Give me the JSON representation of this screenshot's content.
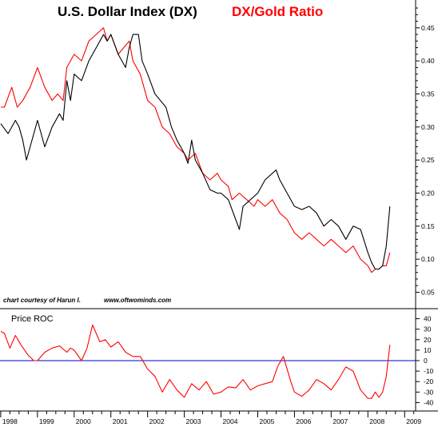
{
  "chart_data": [
    {
      "type": "line",
      "title": "U.S. Dollar Index (DX)",
      "title2": "DX/Gold Ratio",
      "credit_left": "chart courtesy of Harun I.",
      "credit_right": "www.oftwominds.com",
      "ylim": [
        0.03,
        0.48
      ],
      "y_ticks": [
        "0.05",
        "0.10",
        "0.15",
        "0.20",
        "0.25",
        "0.30",
        "0.35",
        "0.40",
        "0.45"
      ],
      "x_ticks": [
        "1998",
        "1999",
        "2000",
        "2001",
        "2002",
        "2003",
        "2004",
        "2005",
        "2006",
        "2007",
        "2008",
        "2009"
      ],
      "series": [
        {
          "name": "U.S. Dollar Index (DX)",
          "color": "#000000",
          "x": [
            1998.0,
            1998.2,
            1998.4,
            1998.5,
            1998.6,
            1998.7,
            1998.8,
            1998.9,
            1999.0,
            1999.2,
            1999.4,
            1999.6,
            1999.7,
            1999.8,
            1999.9,
            2000.0,
            2000.2,
            2000.4,
            2000.6,
            2000.8,
            2000.9,
            2001.0,
            2001.2,
            2001.4,
            2001.5,
            2001.6,
            2001.75,
            2001.85,
            2002.0,
            2002.2,
            2002.35,
            2002.5,
            2002.65,
            2002.8,
            2003.0,
            2003.1,
            2003.2,
            2003.3,
            2003.5,
            2003.7,
            2003.9,
            2004.0,
            2004.2,
            2004.4,
            2004.5,
            2004.6,
            2004.8,
            2005.0,
            2005.2,
            2005.4,
            2005.5,
            2005.6,
            2005.8,
            2006.0,
            2006.2,
            2006.4,
            2006.6,
            2006.8,
            2007.0,
            2007.2,
            2007.4,
            2007.6,
            2007.8,
            2008.0,
            2008.1,
            2008.2,
            2008.3,
            2008.4,
            2008.5,
            2008.6
          ],
          "values": [
            0.305,
            0.29,
            0.31,
            0.3,
            0.28,
            0.25,
            0.27,
            0.29,
            0.31,
            0.27,
            0.3,
            0.32,
            0.31,
            0.37,
            0.34,
            0.38,
            0.37,
            0.4,
            0.42,
            0.44,
            0.43,
            0.44,
            0.41,
            0.39,
            0.42,
            0.44,
            0.44,
            0.4,
            0.38,
            0.35,
            0.34,
            0.33,
            0.3,
            0.28,
            0.26,
            0.245,
            0.28,
            0.25,
            0.23,
            0.205,
            0.2,
            0.2,
            0.19,
            0.16,
            0.145,
            0.18,
            0.19,
            0.2,
            0.22,
            0.23,
            0.235,
            0.22,
            0.2,
            0.18,
            0.175,
            0.18,
            0.17,
            0.15,
            0.16,
            0.15,
            0.13,
            0.15,
            0.145,
            0.11,
            0.095,
            0.085,
            0.085,
            0.09,
            0.12,
            0.18
          ]
        },
        {
          "name": "DX/Gold Ratio",
          "color": "#ff0000",
          "x": [
            1998.0,
            1998.1,
            1998.3,
            1998.45,
            1998.6,
            1998.8,
            1999.0,
            1999.2,
            1999.4,
            1999.55,
            1999.7,
            1999.8,
            2000.0,
            2000.2,
            2000.4,
            2000.6,
            2000.8,
            2000.9,
            2001.0,
            2001.2,
            2001.35,
            2001.5,
            2001.6,
            2001.8,
            2002.0,
            2002.2,
            2002.4,
            2002.6,
            2002.8,
            2003.0,
            2003.1,
            2003.3,
            2003.5,
            2003.7,
            2003.9,
            2004.0,
            2004.2,
            2004.3,
            2004.5,
            2004.7,
            2004.9,
            2005.0,
            2005.2,
            2005.4,
            2005.6,
            2005.8,
            2006.0,
            2006.2,
            2006.4,
            2006.6,
            2006.8,
            2007.0,
            2007.2,
            2007.4,
            2007.6,
            2007.8,
            2008.0,
            2008.1,
            2008.2,
            2008.3,
            2008.4,
            2008.5,
            2008.6
          ],
          "values": [
            0.33,
            0.33,
            0.36,
            0.33,
            0.34,
            0.36,
            0.39,
            0.36,
            0.34,
            0.35,
            0.34,
            0.39,
            0.41,
            0.4,
            0.43,
            0.44,
            0.45,
            0.43,
            0.44,
            0.41,
            0.42,
            0.43,
            0.4,
            0.38,
            0.34,
            0.33,
            0.3,
            0.29,
            0.27,
            0.26,
            0.25,
            0.26,
            0.23,
            0.22,
            0.23,
            0.22,
            0.21,
            0.19,
            0.2,
            0.19,
            0.18,
            0.19,
            0.18,
            0.19,
            0.17,
            0.16,
            0.14,
            0.13,
            0.14,
            0.13,
            0.12,
            0.13,
            0.12,
            0.11,
            0.12,
            0.1,
            0.09,
            0.08,
            0.085,
            0.085,
            0.09,
            0.09,
            0.11
          ]
        }
      ]
    },
    {
      "type": "line",
      "title": "Price ROC",
      "ylim": [
        -45,
        45
      ],
      "y_ticks": [
        "40",
        "30",
        "20",
        "10",
        "0",
        "-10",
        "-20",
        "-30",
        "-40"
      ],
      "zero_line_color": "#0000cc",
      "series": [
        {
          "name": "Price ROC",
          "color": "#ff0000",
          "x": [
            1998.0,
            1998.1,
            1998.25,
            1998.4,
            1998.55,
            1998.75,
            1998.9,
            1999.0,
            1999.2,
            1999.4,
            1999.6,
            1999.8,
            1999.9,
            2000.0,
            2000.2,
            2000.35,
            2000.5,
            2000.7,
            2000.85,
            2001.0,
            2001.2,
            2001.4,
            2001.6,
            2001.8,
            2002.0,
            2002.2,
            2002.4,
            2002.6,
            2002.8,
            2003.0,
            2003.2,
            2003.4,
            2003.6,
            2003.8,
            2004.0,
            2004.2,
            2004.4,
            2004.6,
            2004.8,
            2005.0,
            2005.2,
            2005.4,
            2005.55,
            2005.7,
            2005.9,
            2006.0,
            2006.2,
            2006.4,
            2006.6,
            2006.8,
            2007.0,
            2007.2,
            2007.4,
            2007.6,
            2007.8,
            2008.0,
            2008.1,
            2008.2,
            2008.3,
            2008.4,
            2008.5,
            2008.6
          ],
          "values": [
            28,
            26,
            12,
            24,
            15,
            5,
            0,
            0,
            8,
            12,
            14,
            8,
            12,
            10,
            0,
            12,
            34,
            18,
            20,
            13,
            18,
            8,
            4,
            4,
            -8,
            -15,
            -30,
            -18,
            -28,
            -35,
            -22,
            -28,
            -20,
            -32,
            -30,
            -25,
            -26,
            -18,
            -28,
            -24,
            -22,
            -20,
            -5,
            4,
            -20,
            -30,
            -34,
            -28,
            -18,
            -22,
            -28,
            -18,
            -6,
            -10,
            -28,
            -36,
            -36,
            -30,
            -35,
            -30,
            -15,
            15
          ]
        }
      ]
    }
  ]
}
